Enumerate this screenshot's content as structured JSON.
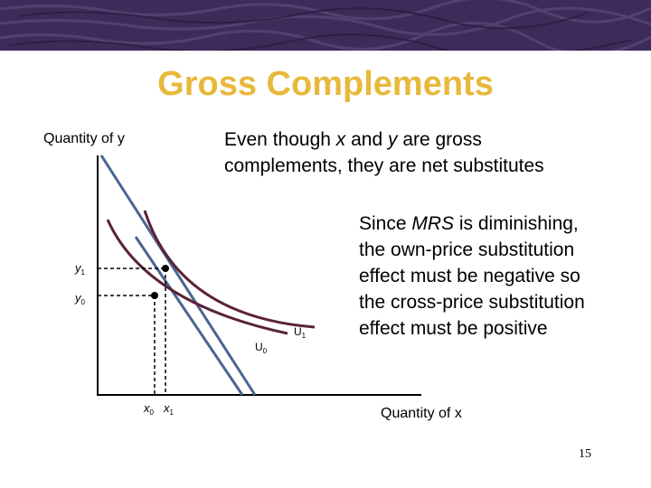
{
  "title": "Gross Complements",
  "axes": {
    "y_label": "Quantity of y",
    "x_label": "Quantity of x"
  },
  "notes": {
    "top_line1_pre": "Even though ",
    "top_line1_x": "x",
    "top_line1_mid": " and ",
    "top_line1_y": "y",
    "top_line1_post": " are gross",
    "top_line2": "complements, they are net substitutes",
    "right_line1_pre": "Since ",
    "right_line1_mrs": "MRS",
    "right_line1_post": " is diminishing,",
    "right_line2": "the own-price substitution",
    "right_line3": "effect must be negative so",
    "right_line4": "the cross-price substitution",
    "right_line5": "effect must be positive"
  },
  "labels": {
    "y1_main": "y",
    "y1_sub": "1",
    "y0_main": "y",
    "y0_sub": "0",
    "x0_main": "x",
    "x0_sub": "0",
    "x1_main": "x",
    "x1_sub": "1",
    "u0_main": "U",
    "u0_sub": "0",
    "u1_main": "U",
    "u1_sub": "1"
  },
  "page_number": "15",
  "colors": {
    "title": "#e8b83a",
    "curve": "#5a2238",
    "budget_line": "#4a6690",
    "banner": "#3d2c5a"
  }
}
